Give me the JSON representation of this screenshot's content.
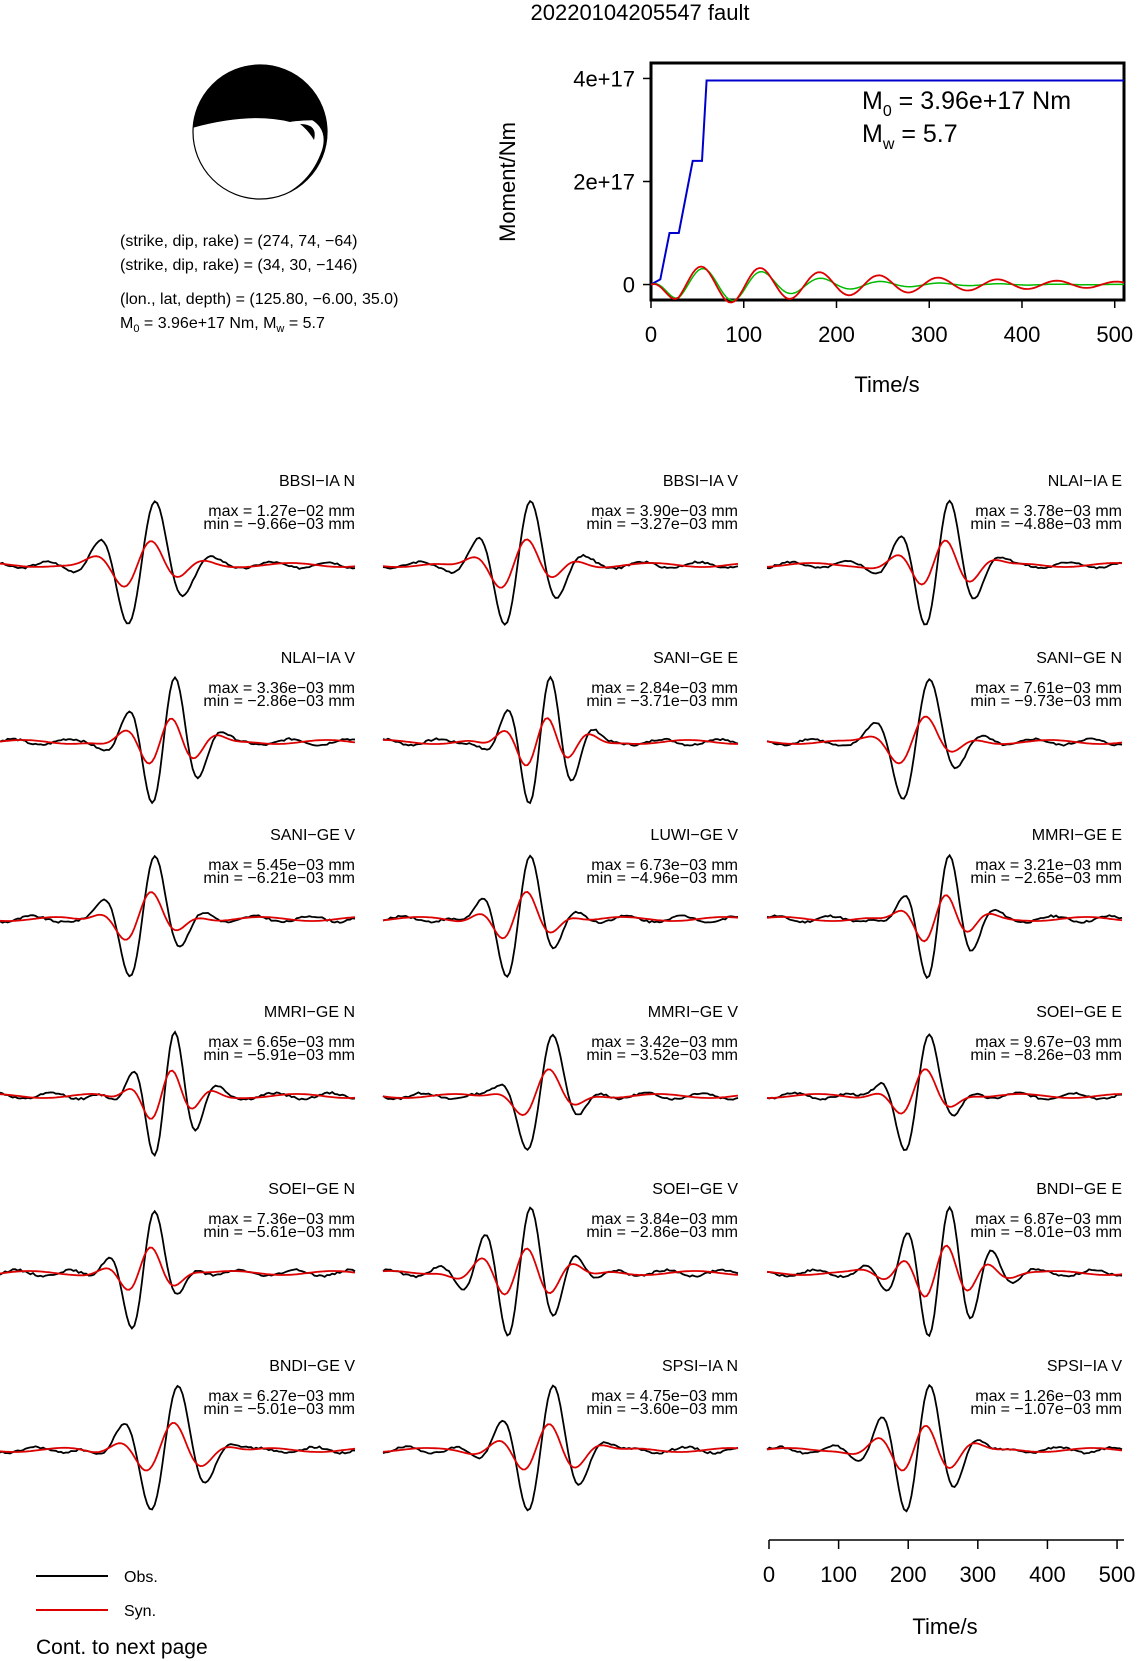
{
  "title": "20220104205547 fault",
  "mechanism": {
    "line1": "(strike, dip, rake) = (274, 74, −64)",
    "line2": "(strike, dip, rake) = (34, 30, −146)",
    "line3": "(lon., lat, depth) = (125.80, −6.00, 35.0)",
    "m0_prefix": "M",
    "m0_sub": "0",
    "m0_rest": " = 3.96e+17 Nm, M",
    "mw_sub": "w",
    "mw_rest": " = 5.7",
    "colors": {
      "fill": "#000000",
      "background": "#ffffff"
    }
  },
  "moment_plot": {
    "ylabel": "Moment/Nm",
    "xlabel": "Time/s",
    "m0_main": "M",
    "m0_sub": "0",
    "m0_rest": " = 3.96e+17 Nm",
    "mw_main": "M",
    "mw_sub": "w",
    "mw_rest": " = 5.7",
    "colors": {
      "moment": "#0000cc",
      "rate_obs": "#00bb00",
      "rate_syn": "#dd0000"
    }
  },
  "chart_data": [
    {
      "type": "line",
      "name": "moment_plot",
      "xlim": [
        0,
        510
      ],
      "ylim": [
        -3e+16,
        4.3e+17
      ],
      "xticks": [
        0,
        100,
        200,
        300,
        400,
        500
      ],
      "yticks": [
        0,
        2e+17,
        4e+17
      ],
      "ytick_labels": [
        "0",
        "2e+17",
        "4e+17"
      ],
      "series": [
        {
          "x": [
            0,
            10,
            20,
            30,
            45,
            55,
            60,
            510
          ],
          "y": [
            0,
            1e+16,
            1e+17,
            1e+17,
            2.4e+17,
            2.4e+17,
            3.96e+17,
            3.96e+17
          ]
        }
      ]
    },
    {
      "type": "line",
      "name": "waveforms",
      "time_axis": {
        "xlim": [
          0,
          510
        ],
        "xticks": [
          0,
          100,
          200,
          300,
          400,
          500
        ],
        "xlabel": "Time/s"
      },
      "legend": [
        "Obs.",
        "Syn."
      ],
      "colors": {
        "obs": "#000000",
        "syn": "#dd0000"
      },
      "traces": [
        {
          "station": "BBSI−IA N",
          "max": "max = 1.27e−02 mm",
          "min": "min = −9.66e−03 mm"
        },
        {
          "station": "BBSI−IA V",
          "max": "max = 3.90e−03 mm",
          "min": "min = −3.27e−03 mm"
        },
        {
          "station": "NLAI−IA E",
          "max": "max = 3.78e−03 mm",
          "min": "min = −4.88e−03 mm"
        },
        {
          "station": "NLAI−IA V",
          "max": "max = 3.36e−03 mm",
          "min": "min = −2.86e−03 mm"
        },
        {
          "station": "SANI−GE E",
          "max": "max = 2.84e−03 mm",
          "min": "min = −3.71e−03 mm"
        },
        {
          "station": "SANI−GE N",
          "max": "max = 7.61e−03 mm",
          "min": "min = −9.73e−03 mm"
        },
        {
          "station": "SANI−GE V",
          "max": "max = 5.45e−03 mm",
          "min": "min = −6.21e−03 mm"
        },
        {
          "station": "LUWI−GE V",
          "max": "max = 6.73e−03 mm",
          "min": "min = −4.96e−03 mm"
        },
        {
          "station": "MMRI−GE E",
          "max": "max = 3.21e−03 mm",
          "min": "min = −2.65e−03 mm"
        },
        {
          "station": "MMRI−GE N",
          "max": "max = 6.65e−03 mm",
          "min": "min = −5.91e−03 mm"
        },
        {
          "station": "MMRI−GE V",
          "max": "max = 3.42e−03 mm",
          "min": "min = −3.52e−03 mm"
        },
        {
          "station": "SOEI−GE E",
          "max": "max = 9.67e−03 mm",
          "min": "min = −8.26e−03 mm"
        },
        {
          "station": "SOEI−GE N",
          "max": "max = 7.36e−03 mm",
          "min": "min = −5.61e−03 mm"
        },
        {
          "station": "SOEI−GE V",
          "max": "max = 3.84e−03 mm",
          "min": "min = −2.86e−03 mm"
        },
        {
          "station": "BNDI−GE E",
          "max": "max = 6.87e−03 mm",
          "min": "min = −8.01e−03 mm"
        },
        {
          "station": "BNDI−GE V",
          "max": "max = 6.27e−03 mm",
          "min": "min = −5.01e−03 mm"
        },
        {
          "station": "SPSI−IA N",
          "max": "max = 4.75e−03 mm",
          "min": "min = −3.60e−03 mm"
        },
        {
          "station": "SPSI−IA V",
          "max": "max = 1.26e−03 mm",
          "min": "min = −1.07e−03 mm"
        }
      ]
    }
  ],
  "legend": {
    "obs": "Obs.",
    "syn": "Syn."
  },
  "footer": "Cont. to next page"
}
